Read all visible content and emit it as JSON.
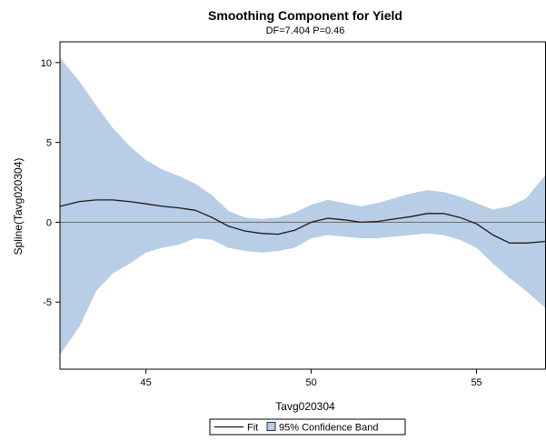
{
  "chart_data": {
    "type": "line",
    "title": "Smoothing Component for Yield",
    "subtitle": "DF=7.404  P=0.46",
    "xlabel": "Tavg020304",
    "ylabel": "Spline(Tavg020304)",
    "xlim": [
      42.4,
      57.1
    ],
    "ylim": [
      -9.2,
      11.3
    ],
    "x_ticks": [
      45,
      50,
      55
    ],
    "y_ticks": [
      -5,
      0,
      5,
      10
    ],
    "reference_line_y": 0,
    "grid": false,
    "legend_position": "bottom-center",
    "colors": {
      "fit": "#1a1a1a",
      "band": "#b8cde6",
      "reference": "#707070"
    },
    "series": [
      {
        "name": "Fit",
        "kind": "line",
        "x": [
          42.4,
          43.0,
          43.5,
          44.0,
          44.5,
          45.0,
          45.5,
          46.0,
          46.5,
          47.0,
          47.5,
          48.0,
          48.5,
          49.0,
          49.5,
          50.0,
          50.5,
          51.0,
          51.5,
          52.0,
          52.5,
          53.0,
          53.5,
          54.0,
          54.5,
          55.0,
          55.5,
          56.0,
          56.5,
          57.1
        ],
        "y": [
          1.0,
          1.3,
          1.4,
          1.4,
          1.3,
          1.15,
          1.0,
          0.9,
          0.75,
          0.3,
          -0.25,
          -0.55,
          -0.7,
          -0.75,
          -0.5,
          0.0,
          0.25,
          0.15,
          0.0,
          0.05,
          0.2,
          0.35,
          0.55,
          0.55,
          0.3,
          -0.1,
          -0.8,
          -1.3,
          -1.3,
          -1.2
        ]
      },
      {
        "name": "95% Confidence Band",
        "kind": "band",
        "x": [
          42.4,
          43.0,
          43.5,
          44.0,
          44.5,
          45.0,
          45.5,
          46.0,
          46.5,
          47.0,
          47.5,
          48.0,
          48.5,
          49.0,
          49.5,
          50.0,
          50.5,
          51.0,
          51.5,
          52.0,
          52.5,
          53.0,
          53.5,
          54.0,
          54.5,
          55.0,
          55.5,
          56.0,
          56.5,
          57.1
        ],
        "upper": [
          10.3,
          8.8,
          7.3,
          5.9,
          4.8,
          3.9,
          3.3,
          2.9,
          2.4,
          1.7,
          0.7,
          0.3,
          0.2,
          0.3,
          0.6,
          1.1,
          1.4,
          1.2,
          1.0,
          1.2,
          1.5,
          1.8,
          2.0,
          1.9,
          1.6,
          1.2,
          0.8,
          1.0,
          1.5,
          3.0
        ],
        "lower": [
          -8.3,
          -6.5,
          -4.3,
          -3.2,
          -2.6,
          -1.9,
          -1.6,
          -1.4,
          -1.0,
          -1.1,
          -1.6,
          -1.8,
          -1.9,
          -1.8,
          -1.6,
          -1.0,
          -0.8,
          -0.9,
          -1.0,
          -1.0,
          -0.9,
          -0.8,
          -0.7,
          -0.8,
          -1.1,
          -1.6,
          -2.6,
          -3.5,
          -4.3,
          -5.4
        ]
      }
    ]
  }
}
